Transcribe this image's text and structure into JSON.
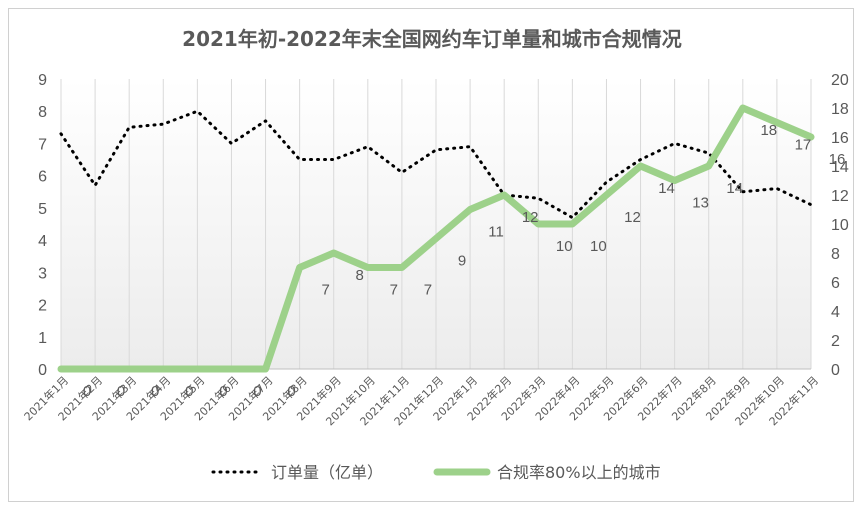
{
  "chart_data": {
    "type": "line",
    "title": "2021年初-2022年末全国网约车订单量和城市合规情况",
    "categories": [
      "2021年1月",
      "2021年2月",
      "2021年3月",
      "2021年4月",
      "2021年5月",
      "2021年6月",
      "2021年7月",
      "2021年8月",
      "2021年9月",
      "2021年10月",
      "2021年11月",
      "2021年12月",
      "2022年1月",
      "2022年2月",
      "2022年3月",
      "2022年4月",
      "2022年5月",
      "2022年6月",
      "2022年7月",
      "2022年8月",
      "2022年9月",
      "2022年10月",
      "2022年11月"
    ],
    "y_left": {
      "ylim": [
        0,
        9
      ],
      "ticks": [
        "0",
        "1",
        "2",
        "3",
        "4",
        "5",
        "6",
        "7",
        "8",
        "9"
      ]
    },
    "y_right": {
      "ylim": [
        0,
        20
      ],
      "ticks": [
        "0",
        "2",
        "4",
        "6",
        "8",
        "10",
        "12",
        "14",
        "16",
        "18",
        "20"
      ]
    },
    "series": [
      {
        "name": "订单量（亿单）",
        "axis": "left",
        "style": "dotted",
        "color": "#000000",
        "values": [
          7.3,
          5.7,
          7.5,
          7.6,
          8.0,
          7.0,
          7.7,
          6.5,
          6.5,
          6.9,
          6.1,
          6.8,
          6.9,
          5.4,
          5.3,
          4.7,
          5.8,
          6.5,
          7.0,
          6.7,
          5.5,
          5.6,
          5.1
        ]
      },
      {
        "name": "合规率80%以上的城市",
        "axis": "right",
        "style": "solid",
        "color": "#9dd18a",
        "values": [
          0,
          0,
          0,
          0,
          0,
          0,
          0,
          7,
          8,
          7,
          7,
          9,
          11,
          12,
          10,
          10,
          12,
          14,
          13,
          14,
          18,
          17,
          16
        ],
        "data_labels": [
          "0",
          "0",
          "0",
          "0",
          "0",
          "0",
          "0",
          "7",
          "8",
          "7",
          "7",
          "9",
          "11",
          "12",
          "10",
          "10",
          "12",
          "14",
          "13",
          "14",
          "18",
          "17",
          "16"
        ]
      }
    ],
    "grid": "vertical",
    "legend_position": "bottom"
  }
}
